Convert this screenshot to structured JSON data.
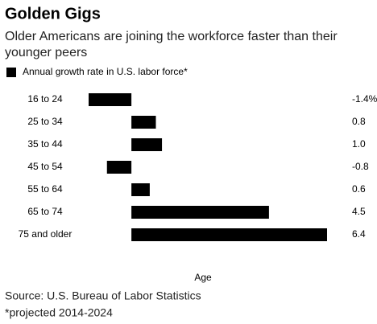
{
  "chart_data": {
    "type": "hbar",
    "title": "Golden Gigs",
    "subtitle": "Older Americans are joining the workforce faster than their younger peers",
    "categories": [
      "16 to 24",
      "25 to 34",
      "35 to 44",
      "45 to 54",
      "55 to 64",
      "65 to 74",
      "75 and older"
    ],
    "series": [
      {
        "name": "Annual growth rate in U.S. labor force*",
        "color": "#000000",
        "values": [
          -1.4,
          0.8,
          1.0,
          -0.8,
          0.6,
          4.5,
          6.4
        ],
        "value_labels": [
          "-1.4%",
          "0.8",
          "1.0",
          "-0.8",
          "0.6",
          "4.5",
          "6.4"
        ]
      }
    ],
    "y_label": "Age",
    "source": "Source: U.S. Bureau of Labor Statistics",
    "footnote": "*projected 2014-2024"
  }
}
